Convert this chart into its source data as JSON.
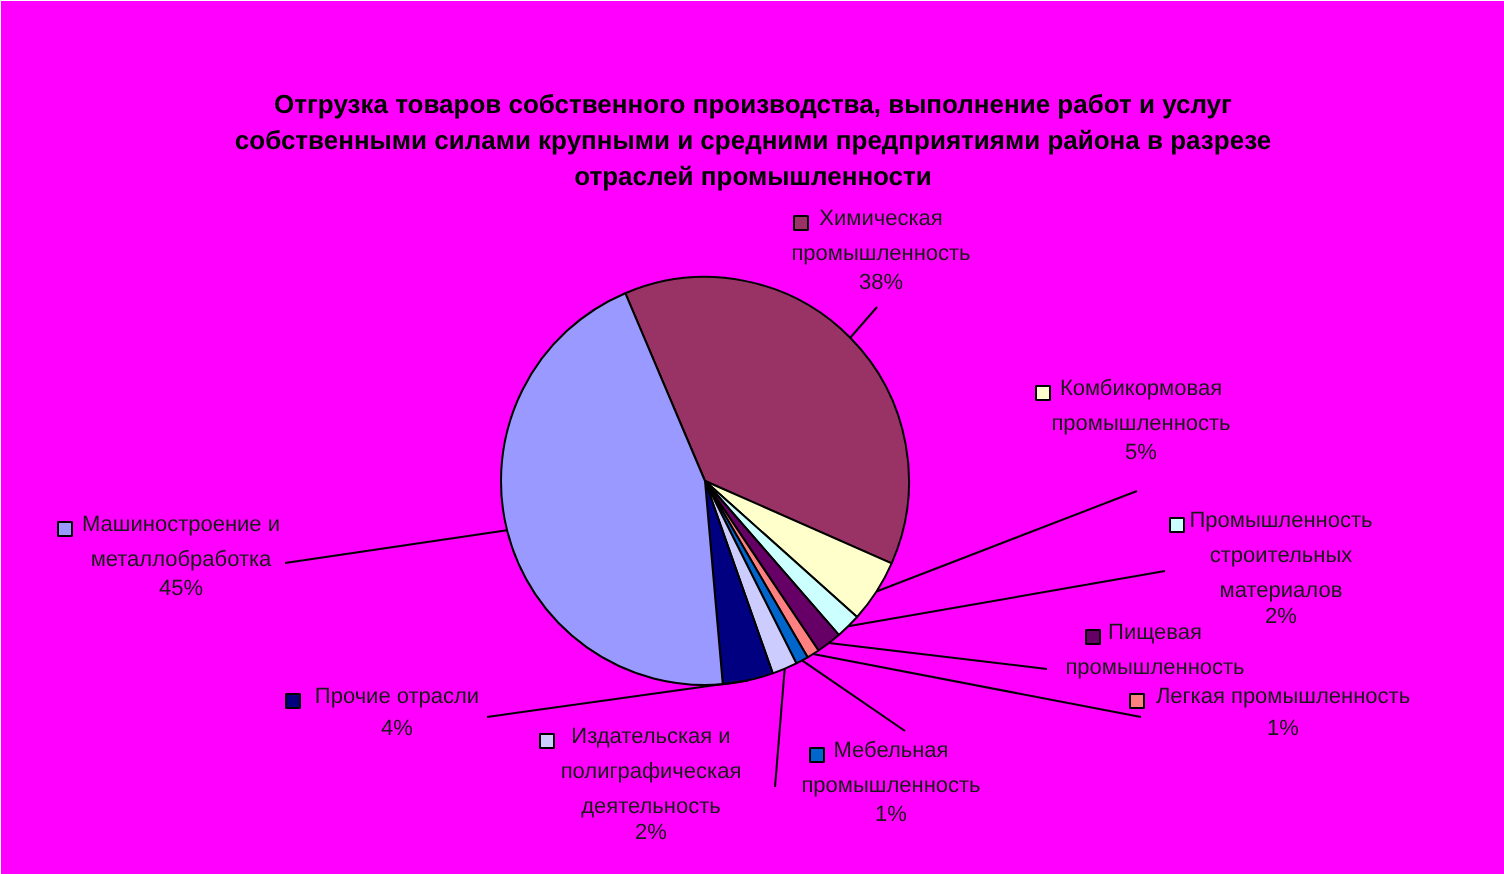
{
  "chart_data": {
    "type": "pie",
    "title": "Отгрузка товаров собственного производства, выполнение работ и услуг собственными силами крупными и средними предприятиями района в разрезе отраслей промышленности",
    "categories": [
      "Химическая промышленность",
      "Комбикормовая промышленность",
      "Промышленность строительных материалов",
      "Пищевая промышленность",
      "Легкая промышленность",
      "Мебельная промышленность",
      "Издательская и полиграфическая деятельность",
      "Прочие отрасли",
      "Машиностроение и металлобработка"
    ],
    "values": [
      38,
      5,
      2,
      2,
      1,
      1,
      2,
      4,
      45
    ],
    "colors": [
      "#993366",
      "#ffffcc",
      "#ccffff",
      "#660066",
      "#ff8080",
      "#0066cc",
      "#ccccff",
      "#000080",
      "#9999ff"
    ],
    "value_labels": [
      "38%",
      "5%",
      "2%",
      null,
      "1%",
      "1%",
      "2%",
      "4%",
      "45%"
    ],
    "legend": "right"
  }
}
